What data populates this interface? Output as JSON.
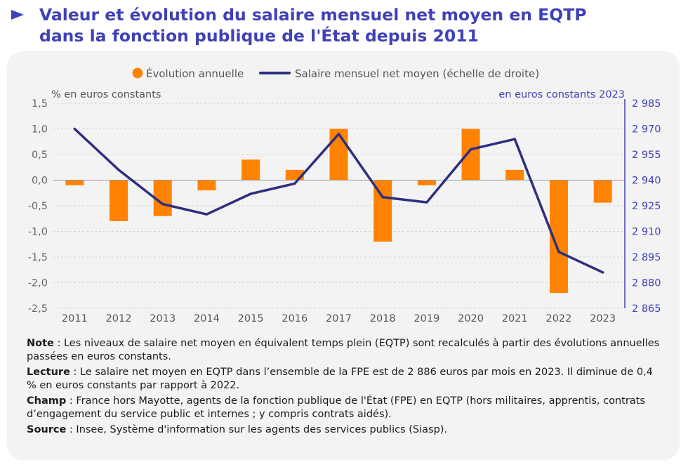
{
  "header": {
    "title_line1": "Valeur et évolution du salaire mensuel net moyen en EQTP",
    "title_line2": "dans la fonction publique de l'État depuis 2011"
  },
  "chart_data": {
    "type": "bar+line",
    "categories": [
      "2011",
      "2012",
      "2013",
      "2014",
      "2015",
      "2016",
      "2017",
      "2018",
      "2019",
      "2020",
      "2021",
      "2022",
      "2023"
    ],
    "series": [
      {
        "name": "Évolution annuelle",
        "type": "bar",
        "axis": "left",
        "color": "#ff8200",
        "values": [
          -0.1,
          -0.8,
          -0.7,
          -0.2,
          0.4,
          0.2,
          1.0,
          -1.2,
          -0.1,
          1.0,
          0.2,
          -2.2,
          -0.44
        ]
      },
      {
        "name": "Salaire mensuel net moyen (échelle de droite)",
        "type": "line",
        "axis": "right",
        "color": "#2e2f7f",
        "values": [
          2970,
          2946,
          2926,
          2920,
          2932,
          2938,
          2967,
          2930,
          2927,
          2958,
          2964,
          2898,
          2886
        ]
      }
    ],
    "y_left": {
      "label": "% en euros constants",
      "range": [
        -2.5,
        1.5
      ],
      "ticks": [
        1.5,
        1.0,
        0.5,
        0.0,
        -0.5,
        -1.0,
        -1.5,
        -2.0,
        -2.5
      ],
      "tick_labels": [
        "1,5",
        "1,0",
        "0,5",
        "0,0",
        "-0,5",
        "-1,0",
        "-1,5",
        "-2,0",
        "-2,5"
      ]
    },
    "y_right": {
      "label": "en euros constants 2023",
      "range": [
        2865,
        2985
      ],
      "ticks": [
        2985,
        2970,
        2955,
        2940,
        2925,
        2910,
        2895,
        2880,
        2865
      ],
      "tick_labels": [
        "2 985",
        "2 970",
        "2 955",
        "2 940",
        "2 925",
        "2 910",
        "2 895",
        "2 880",
        "2 865"
      ]
    },
    "grid": true,
    "legend_position": "top"
  },
  "notes": {
    "note_label": "Note",
    "note_text": " : Les niveaux de salaire net moyen en équivalent temps plein (EQTP) sont recalculés à partir des évolutions annuelles passées en euros constants.",
    "lecture_label": "Lecture",
    "lecture_text": " : Le salaire net moyen en EQTP dans l’ensemble de la FPE est de 2 886 euros par mois en 2023. Il diminue de 0,4 % en euros constants par rapport à 2022.",
    "champ_label": "Champ",
    "champ_text": " : France hors Mayotte, agents de la fonction publique de l'État (FPE) en EQTP (hors militaires, apprentis, contrats d’engagement du service public et internes ; y compris contrats aidés).",
    "source_label": "Source",
    "source_text": " : Insee, Système d'information sur les agents des services publics (Siasp)."
  }
}
